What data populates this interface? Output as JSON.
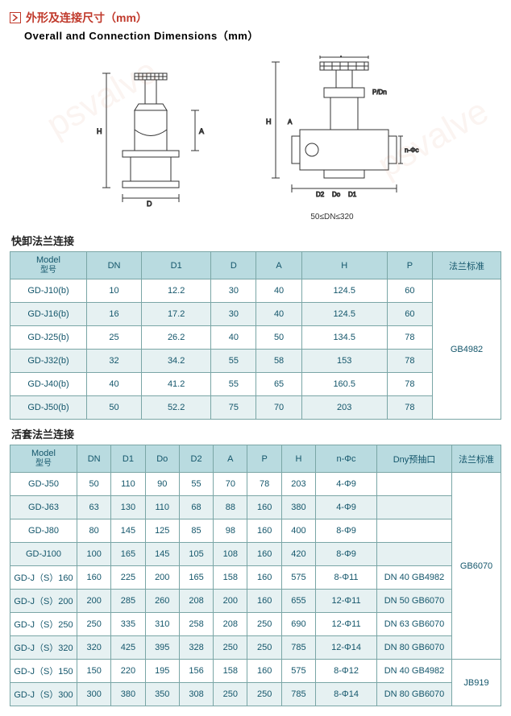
{
  "heading": {
    "cn": "外形及连接尺寸（mm）",
    "en": "Overall and Connection Dimensions（mm）"
  },
  "diagram_caption": "50≤DN≤320",
  "section1": {
    "title": "快卸法兰连接"
  },
  "section2": {
    "title": "活套法兰连接"
  },
  "table1": {
    "columns": [
      "Model",
      "DN",
      "D1",
      "D",
      "A",
      "H",
      "P",
      "法兰标准"
    ],
    "model_sub": "型号",
    "std_label": "GB4982",
    "rows": [
      [
        "GD-J10(b)",
        "10",
        "12.2",
        "30",
        "40",
        "124.5",
        "60"
      ],
      [
        "GD-J16(b)",
        "16",
        "17.2",
        "30",
        "40",
        "124.5",
        "60"
      ],
      [
        "GD-J25(b)",
        "25",
        "26.2",
        "40",
        "50",
        "134.5",
        "78"
      ],
      [
        "GD-J32(b)",
        "32",
        "34.2",
        "55",
        "58",
        "153",
        "78"
      ],
      [
        "GD-J40(b)",
        "40",
        "41.2",
        "55",
        "65",
        "160.5",
        "78"
      ],
      [
        "GD-J50(b)",
        "50",
        "52.2",
        "75",
        "70",
        "203",
        "78"
      ]
    ],
    "header_bg": "#b9dbe0",
    "border_color": "#7aa6a6",
    "alt_bg": "#e6f1f2"
  },
  "table2": {
    "columns": [
      "Model",
      "DN",
      "D1",
      "Do",
      "D2",
      "A",
      "P",
      "H",
      "n-Φc",
      "Dny预抽口",
      "法兰标准"
    ],
    "model_sub": "型号",
    "std_label_1": "GB6070",
    "std_label_2": "JB919",
    "rows": [
      [
        "GD-J50",
        "50",
        "110",
        "90",
        "55",
        "70",
        "78",
        "203",
        "4-Φ9",
        ""
      ],
      [
        "GD-J63",
        "63",
        "130",
        "110",
        "68",
        "88",
        "160",
        "380",
        "4-Φ9",
        ""
      ],
      [
        "GD-J80",
        "80",
        "145",
        "125",
        "85",
        "98",
        "160",
        "400",
        "8-Φ9",
        ""
      ],
      [
        "GD-J100",
        "100",
        "165",
        "145",
        "105",
        "108",
        "160",
        "420",
        "8-Φ9",
        ""
      ],
      [
        "GD-J（S）160",
        "160",
        "225",
        "200",
        "165",
        "158",
        "160",
        "575",
        "8-Φ11",
        "DN 40 GB4982"
      ],
      [
        "GD-J（S）200",
        "200",
        "285",
        "260",
        "208",
        "200",
        "160",
        "655",
        "12-Φ11",
        "DN 50 GB6070"
      ],
      [
        "GD-J（S）250",
        "250",
        "335",
        "310",
        "258",
        "208",
        "250",
        "690",
        "12-Φ11",
        "DN 63 GB6070"
      ],
      [
        "GD-J（S）320",
        "320",
        "425",
        "395",
        "328",
        "250",
        "250",
        "785",
        "12-Φ14",
        "DN 80 GB6070"
      ],
      [
        "GD-J（S）150",
        "150",
        "220",
        "195",
        "156",
        "158",
        "160",
        "575",
        "8-Φ12",
        "DN 40 GB4982"
      ],
      [
        "GD-J（S）300",
        "300",
        "380",
        "350",
        "308",
        "250",
        "250",
        "785",
        "8-Φ14",
        "DN 80 GB6070"
      ]
    ]
  }
}
